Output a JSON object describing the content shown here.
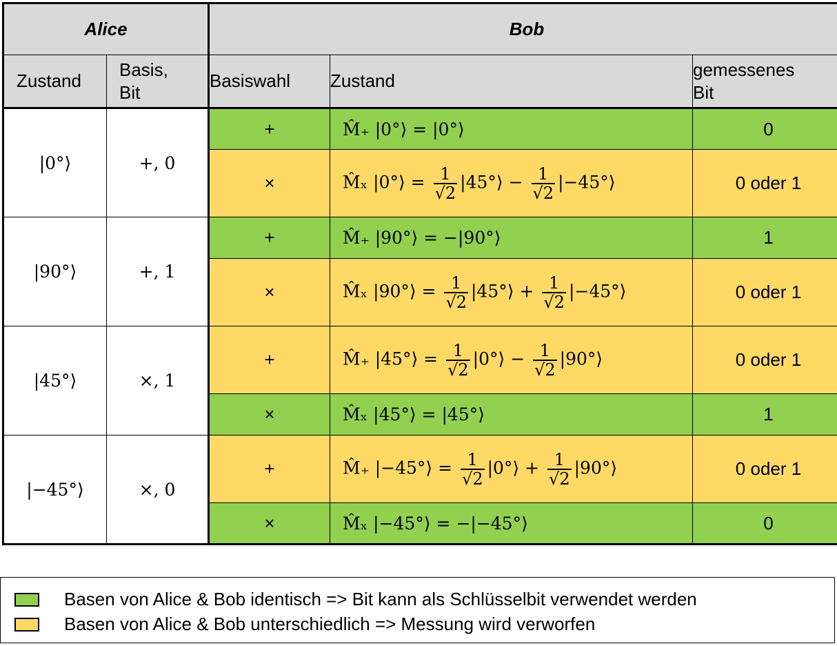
{
  "header": {
    "alice": "Alice",
    "bob": "Bob",
    "col_zustand": "Zustand",
    "col_basis_bit": [
      "Basis,",
      "Bit"
    ],
    "col_basiswahl": "Basiswahl",
    "col_bob_zustand": "Zustand",
    "col_gemessen": [
      "gemessenes",
      "Bit"
    ]
  },
  "colors": {
    "green": "#92d050",
    "yellow": "#ffd966",
    "header": "#d9d9d9"
  },
  "groups": [
    {
      "state": "|0°⟩",
      "basis_bit": "+, 0",
      "rows": [
        {
          "basis": "+",
          "color": "green",
          "lhs": "M̂₊ |0°⟩ =",
          "terms": [
            "|0°⟩"
          ],
          "bit": "0"
        },
        {
          "basis": "×",
          "color": "yellow",
          "lhs": "M̂ₓ |0°⟩ =",
          "f1": "|45°⟩",
          "op": "−",
          "f2": "|−45°⟩",
          "bit": "0 oder 1"
        }
      ]
    },
    {
      "state": "|90°⟩",
      "basis_bit": "+, 1",
      "rows": [
        {
          "basis": "+",
          "color": "green",
          "lhs": "M̂₊ |90°⟩ =",
          "terms": [
            "−|90°⟩"
          ],
          "bit": "1"
        },
        {
          "basis": "×",
          "color": "yellow",
          "lhs": "M̂ₓ |90°⟩ =",
          "f1": "|45°⟩",
          "op": "+",
          "f2": "|−45°⟩",
          "bit": "0 oder 1"
        }
      ]
    },
    {
      "state": "|45°⟩",
      "basis_bit": "×, 1",
      "rows": [
        {
          "basis": "+",
          "color": "yellow",
          "lhs": "M̂₊ |45°⟩ =",
          "f1": "|0°⟩",
          "op": "−",
          "f2": "|90°⟩",
          "bit": "0 oder 1"
        },
        {
          "basis": "×",
          "color": "green",
          "lhs": "M̂ₓ |45°⟩ =",
          "terms": [
            "|45°⟩"
          ],
          "bit": "1"
        }
      ]
    },
    {
      "state": "|−45°⟩",
      "basis_bit": "×, 0",
      "rows": [
        {
          "basis": "+",
          "color": "yellow",
          "lhs": "M̂₊ |−45°⟩ =",
          "f1": "|0°⟩",
          "op": "+",
          "f2": "|90°⟩",
          "bit": "0 oder 1"
        },
        {
          "basis": "×",
          "color": "green",
          "lhs": "M̂ₓ |−45°⟩ =",
          "terms": [
            "−|−45°⟩"
          ],
          "bit": "0"
        }
      ]
    }
  ],
  "fraction": {
    "num": "1",
    "den": "√2"
  },
  "legend": [
    {
      "color": "green",
      "text": "Basen von Alice & Bob identisch => Bit kann als Schlüsselbit verwendet werden"
    },
    {
      "color": "yellow",
      "text": "Basen von Alice & Bob unterschiedlich => Messung wird verworfen"
    }
  ]
}
